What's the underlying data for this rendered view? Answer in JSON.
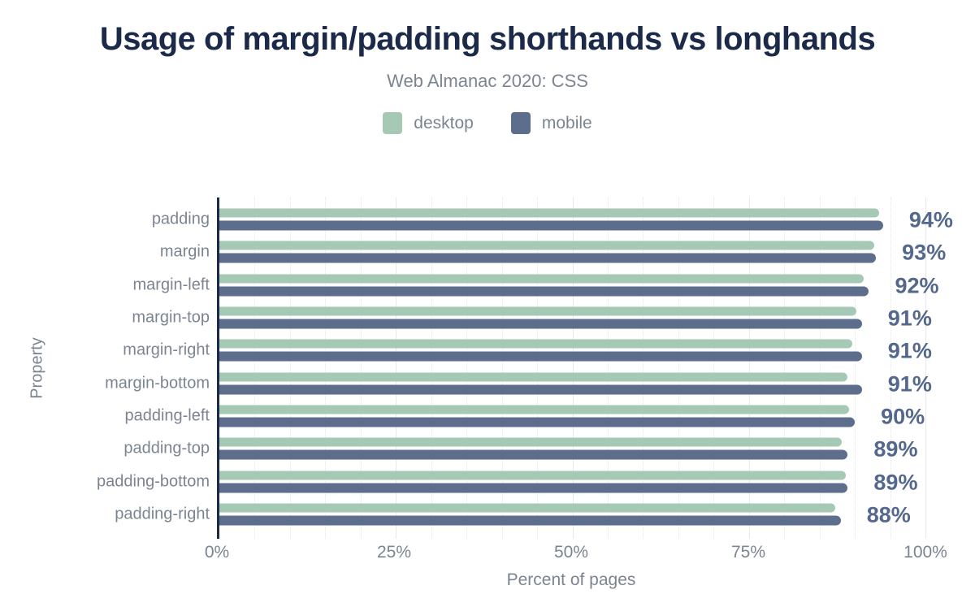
{
  "header": {
    "title": "Usage of margin/padding shorthands vs longhands",
    "subtitle": "Web Almanac 2020: CSS"
  },
  "legend": {
    "items": [
      {
        "label": "desktop",
        "color": "#a5c9b5"
      },
      {
        "label": "mobile",
        "color": "#5d6e8c"
      }
    ]
  },
  "chart_data": {
    "type": "bar",
    "orientation": "horizontal",
    "title": "Usage of margin/padding shorthands vs longhands",
    "subtitle": "Web Almanac 2020: CSS",
    "xlabel": "Percent of pages",
    "ylabel": "Property",
    "xlim": [
      0,
      100
    ],
    "x_tick_labels": [
      "0%",
      "25%",
      "50%",
      "75%",
      "100%"
    ],
    "x_tick_values": [
      0,
      25,
      50,
      75,
      100
    ],
    "major_grid_step": 25,
    "minor_grid_step": 5,
    "grid": "vertical",
    "legend_position": "top",
    "categories": [
      "padding",
      "margin",
      "margin-left",
      "margin-top",
      "margin-right",
      "margin-bottom",
      "padding-left",
      "padding-top",
      "padding-bottom",
      "padding-right"
    ],
    "series": [
      {
        "name": "desktop",
        "color": "#a5c9b5",
        "values": [
          93.4,
          92.8,
          91.3,
          90.2,
          89.6,
          89.0,
          89.2,
          88.1,
          88.7,
          87.2
        ]
      },
      {
        "name": "mobile",
        "color": "#5d6e8c",
        "values": [
          94,
          93,
          92,
          91,
          91,
          91,
          90,
          89,
          89,
          88
        ]
      }
    ],
    "value_labels": [
      "94%",
      "93%",
      "92%",
      "91%",
      "91%",
      "91%",
      "90%",
      "89%",
      "89%",
      "88%"
    ],
    "value_labels_series": "mobile"
  },
  "colors": {
    "background": "#ffffff",
    "title": "#1c2a49",
    "subtitle": "#7b8591",
    "axis_line": "#1c2a49",
    "tick_text": "#7b8591",
    "category_text": "#7b8591",
    "value_label": "#54688d",
    "grid_major": "#e7e9ec",
    "grid_minor": "#e3e7ea"
  }
}
